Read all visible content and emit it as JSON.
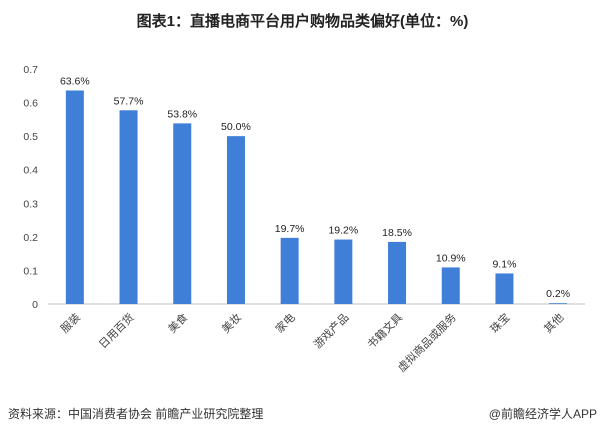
{
  "chart_data": {
    "type": "bar",
    "title": "图表1：直播电商平台用户购物品类偏好(单位：%)",
    "categories": [
      "服装",
      "日用百货",
      "美食",
      "美妆",
      "家电",
      "游戏产品",
      "书籍文具",
      "虚拟商品或服务",
      "珠宝",
      "其他"
    ],
    "values": [
      0.636,
      0.577,
      0.538,
      0.5,
      0.197,
      0.192,
      0.185,
      0.109,
      0.091,
      0.002
    ],
    "value_labels": [
      "63.6%",
      "57.7%",
      "53.8%",
      "50.0%",
      "19.7%",
      "19.2%",
      "18.5%",
      "10.9%",
      "9.1%",
      "0.2%"
    ],
    "yticks": [
      "0",
      "0.1",
      "0.2",
      "0.3",
      "0.4",
      "0.5",
      "0.6",
      "0.7"
    ],
    "ylim": [
      0,
      0.7
    ],
    "grid": false,
    "bar_color": "#3f7fd8",
    "xlabel": "",
    "ylabel": ""
  },
  "footer": {
    "source": "资料来源：中国消费者协会 前瞻产业研究院整理",
    "brand": "@前瞻经济学人APP"
  }
}
